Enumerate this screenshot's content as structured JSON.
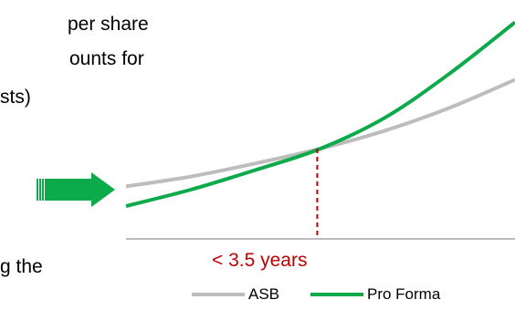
{
  "text_fragments": [
    "per share",
    "ounts for",
    "sts)",
    "g the"
  ],
  "colors": {
    "asb": "#BDBDBD",
    "pro_forma": "#0DAA4B",
    "annotation": "#C00000",
    "axis": "#A6A6A6",
    "arrow": "#0DAA4B"
  },
  "chart_data": {
    "type": "line",
    "title": "",
    "xlabel": "",
    "ylabel": "",
    "series": [
      {
        "name": "ASB",
        "color": "#BDBDBD",
        "x": [
          0,
          1,
          2,
          3,
          4,
          5,
          6
        ],
        "y": [
          32,
          38,
          46,
          55,
          66,
          80,
          97
        ]
      },
      {
        "name": "Pro Forma",
        "color": "#0DAA4B",
        "x": [
          0,
          1,
          2,
          3,
          4,
          5,
          6
        ],
        "y": [
          20,
          30,
          42,
          55,
          74,
          101,
          132
        ]
      }
    ],
    "crossover": {
      "x": 2.95,
      "y": 55
    },
    "annotation": "< 3.5 years",
    "legend": {
      "position": "bottom",
      "entries": [
        "ASB",
        "Pro Forma"
      ]
    }
  }
}
